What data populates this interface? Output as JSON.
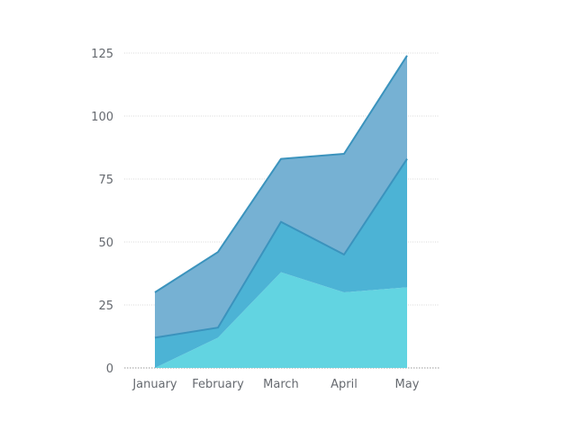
{
  "chart_data": {
    "type": "area",
    "stacked": true,
    "categories": [
      "January",
      "February",
      "March",
      "April",
      "May"
    ],
    "series": [
      {
        "values": [
          0,
          12,
          38,
          30,
          32
        ],
        "color": "#62d4e1"
      },
      {
        "values": [
          12,
          4,
          20,
          15,
          51
        ],
        "color": "#4cb3d5"
      },
      {
        "values": [
          18,
          30,
          25,
          40,
          41
        ],
        "color": "#76b1d3"
      }
    ],
    "y_ticks": [
      "0",
      "25",
      "50",
      "75",
      "100",
      "125"
    ],
    "ylim": [
      0,
      125
    ],
    "grid": true,
    "grid_style": "dotted horizontal",
    "line_color": "#3b93bd",
    "grid_color": "#d8d8d8",
    "axis_color": "#9a9a9a"
  }
}
